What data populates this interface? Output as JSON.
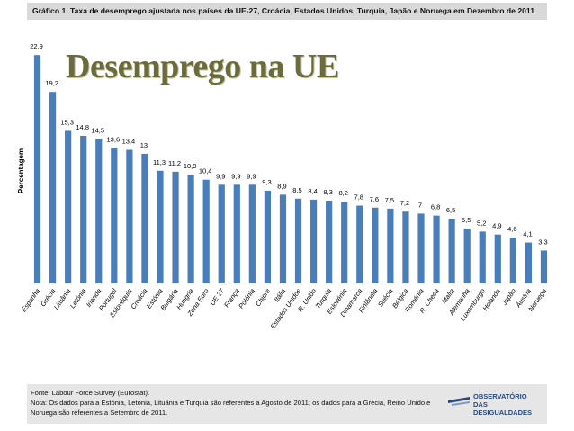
{
  "chart_data": {
    "type": "bar",
    "title": "Gráfico 1. Taxa de desemprego ajustada nos países da UE-27, Croácia, Estados Unidos, Turquia, Japão e Noruega em Dezembro de 2011",
    "subtitle": "Desemprego na UE",
    "y_label": "Percentagem",
    "categories": [
      "Espanha",
      "Grécia",
      "Lituânia",
      "Letónia",
      "Irlanda",
      "Portugal",
      "Eslováquia",
      "Croácia",
      "Estónia",
      "Bulgária",
      "Hungria",
      "Zona Euro",
      "UE 27",
      "França",
      "Polónia",
      "Chipre",
      "Itália",
      "Estados Unidos",
      "R. Unido",
      "Turquia",
      "Eslovénia",
      "Dinamarca",
      "Finlândia",
      "Suécia",
      "Bélgica",
      "Roménia",
      "R. Checa",
      "Malta",
      "Alemanha",
      "Luxemburgo",
      "Holanda",
      "Japão",
      "Áustria",
      "Noruega"
    ],
    "values": [
      22.9,
      19.2,
      15.3,
      14.8,
      14.5,
      13.6,
      13.4,
      13,
      11.3,
      11.2,
      10.9,
      10.4,
      9.9,
      9.9,
      9.9,
      9.3,
      8.9,
      8.5,
      8.4,
      8.3,
      8.2,
      7.8,
      7.6,
      7.5,
      7.2,
      7,
      6.8,
      6.5,
      5.5,
      5.2,
      4.9,
      4.6,
      4.1,
      3.3
    ],
    "value_labels": [
      "22,9",
      "19,2",
      "15,3",
      "14,8",
      "14,5",
      "13,6",
      "13,4",
      "13",
      "11,3",
      "11,2",
      "10,9",
      "10,4",
      "9,9",
      "9,9",
      "9,9",
      "9,3",
      "8,9",
      "8,5",
      "8,4",
      "8,3",
      "8,2",
      "7,8",
      "7,6",
      "7,5",
      "7,2",
      "7",
      "6,8",
      "6,5",
      "5,5",
      "5,2",
      "4,9",
      "4,6",
      "4,1",
      "3,3"
    ],
    "color": "#4a7ebb",
    "ylim": [
      0,
      24
    ],
    "source": "Fonte: Labour Force Survey (Eurostat).",
    "note": "Nota: Os dados para a Estónia, Letónia, Lituânia e Turquia são referentes a Agosto de 2011; os dados para a Grécia, Reino Unido e Noruega são referentes a Setembro de 2011.",
    "logo": [
      "OBSERVATÓRIO",
      "DAS DESIGUALDADES"
    ]
  }
}
